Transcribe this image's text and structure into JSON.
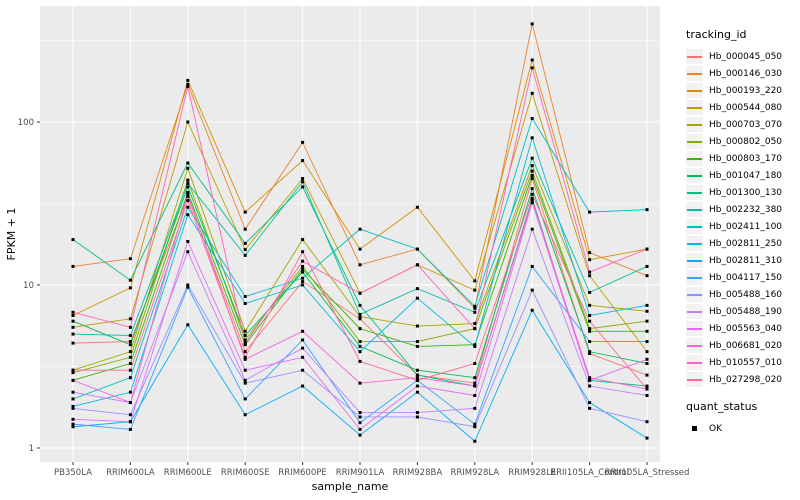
{
  "figure": {
    "background": "#FFFFFF",
    "panel_background": "#EBEBEB",
    "gridline_color": "#FFFFFF",
    "tick_text_color": "#4D4D4D",
    "axis_title_color": "#000000",
    "point_color": "#000000"
  },
  "chart_data": {
    "type": "line",
    "title": "",
    "xlabel": "sample_name",
    "ylabel": "FPKM + 1",
    "y_scale": "log10",
    "y_ticks": [
      "1",
      "10",
      "100"
    ],
    "ylim": [
      1,
      515
    ],
    "grid": "on",
    "legend_position": "right",
    "legend_title": "tracking_id",
    "point_legend": {
      "title": "quant_status",
      "label": "OK"
    },
    "x_categories": [
      "PB350LA",
      "RRIM600LA",
      "RRIM600LE",
      "RRIM600SE",
      "RRIM600PE",
      "RRIM901LA",
      "RRIM928BA",
      "RRIM928LA",
      "RRIM928LE",
      "RRII105LA_Control",
      "RRII105LA_Stressed"
    ],
    "series": [
      {
        "name": "Hb_000045_050",
        "color": "#F8766D",
        "values": [
          4.4,
          4.5,
          35,
          3.9,
          10.5,
          6.2,
          2.8,
          2.5,
          45,
          3.8,
          2.8
        ]
      },
      {
        "name": "Hb_000146_030",
        "color": "#EA8331",
        "values": [
          13,
          14.5,
          170,
          22,
          75,
          13.3,
          16.6,
          7.2,
          400,
          15.8,
          11.4
        ]
      },
      {
        "name": "Hb_000193_220",
        "color": "#D89000",
        "values": [
          6.5,
          9.6,
          180,
          28,
          58,
          16.6,
          30,
          10.6,
          240,
          14.3,
          16.6
        ]
      },
      {
        "name": "Hb_000544_080",
        "color": "#C09B00",
        "values": [
          5.5,
          6.2,
          100,
          16.5,
          45,
          8.9,
          13.3,
          9.3,
          150,
          11.4,
          3.9
        ]
      },
      {
        "name": "Hb_000703_070",
        "color": "#A3A500",
        "values": [
          3.0,
          3.9,
          52,
          5.2,
          19,
          6.4,
          5.6,
          5.8,
          54,
          7.5,
          6.9
        ]
      },
      {
        "name": "Hb_000802_050",
        "color": "#7CAE00",
        "values": [
          2.9,
          3.6,
          44,
          4.6,
          13,
          4.5,
          4.5,
          5.4,
          50,
          5.4,
          6.0
        ]
      },
      {
        "name": "Hb_000803_170",
        "color": "#39B600",
        "values": [
          2.6,
          3.3,
          37,
          4.3,
          12.5,
          5.4,
          4.2,
          4.3,
          47,
          5.2,
          5.2
        ]
      },
      {
        "name": "Hb_001047_180",
        "color": "#00BB4E",
        "values": [
          6.0,
          4.3,
          40,
          4.9,
          12,
          4.2,
          3.0,
          2.7,
          39,
          3.9,
          3.3
        ]
      },
      {
        "name": "Hb_001300_130",
        "color": "#00BF7D",
        "values": [
          19,
          10.7,
          56,
          18,
          40,
          7.5,
          2.8,
          2.4,
          34,
          2.6,
          2.4
        ]
      },
      {
        "name": "Hb_002232_380",
        "color": "#00C1A3",
        "values": [
          5.0,
          4.9,
          42,
          15.2,
          43,
          6.6,
          9.5,
          6.8,
          60,
          9.0,
          13.0
        ]
      },
      {
        "name": "Hb_002411_100",
        "color": "#00BFC4",
        "values": [
          2.0,
          2.7,
          30,
          8.5,
          11,
          22,
          16.6,
          7.4,
          105,
          28,
          29
        ]
      },
      {
        "name": "Hb_002811_250",
        "color": "#00BAE0",
        "values": [
          1.8,
          2.2,
          27,
          7.7,
          10,
          3.9,
          8.3,
          4.2,
          80,
          6.5,
          7.5
        ]
      },
      {
        "name": "Hb_002811_310",
        "color": "#00B0F6",
        "values": [
          1.35,
          1.45,
          5.7,
          1.6,
          2.4,
          1.2,
          2.2,
          1.1,
          7.0,
          1.9,
          1.15
        ]
      },
      {
        "name": "Hb_004117_150",
        "color": "#35A2FF",
        "values": [
          1.4,
          1.3,
          9.7,
          2.0,
          4.6,
          1.43,
          2.6,
          1.4,
          13,
          4.5,
          4.5
        ]
      },
      {
        "name": "Hb_005488_160",
        "color": "#9590FF",
        "values": [
          1.75,
          1.6,
          10,
          2.5,
          3.0,
          1.55,
          1.55,
          1.35,
          9.3,
          1.75,
          1.45
        ]
      },
      {
        "name": "Hb_005488_190",
        "color": "#C77CFF",
        "values": [
          2.2,
          1.9,
          16,
          2.6,
          4.1,
          1.65,
          1.65,
          1.75,
          22,
          2.4,
          2.1
        ]
      },
      {
        "name": "Hb_005563_040",
        "color": "#E76BF3",
        "values": [
          1.5,
          1.45,
          18.5,
          3.0,
          3.6,
          1.3,
          2.4,
          2.1,
          32,
          2.6,
          3.5
        ]
      },
      {
        "name": "Hb_006681_020",
        "color": "#FA62DB",
        "values": [
          2.6,
          1.9,
          36,
          3.5,
          5.2,
          2.5,
          2.7,
          2.4,
          33,
          2.7,
          2.3
        ]
      },
      {
        "name": "Hb_010557_010",
        "color": "#FF62BC",
        "values": [
          6.8,
          5.5,
          165,
          4.4,
          14,
          8.9,
          13.3,
          5.4,
          215,
          12.0,
          16.6
        ]
      },
      {
        "name": "Hb_027298_020",
        "color": "#FF6A98",
        "values": [
          3.0,
          3.0,
          33,
          3.6,
          16,
          3.4,
          2.6,
          3.3,
          36,
          6.0,
          2.3
        ]
      }
    ]
  }
}
